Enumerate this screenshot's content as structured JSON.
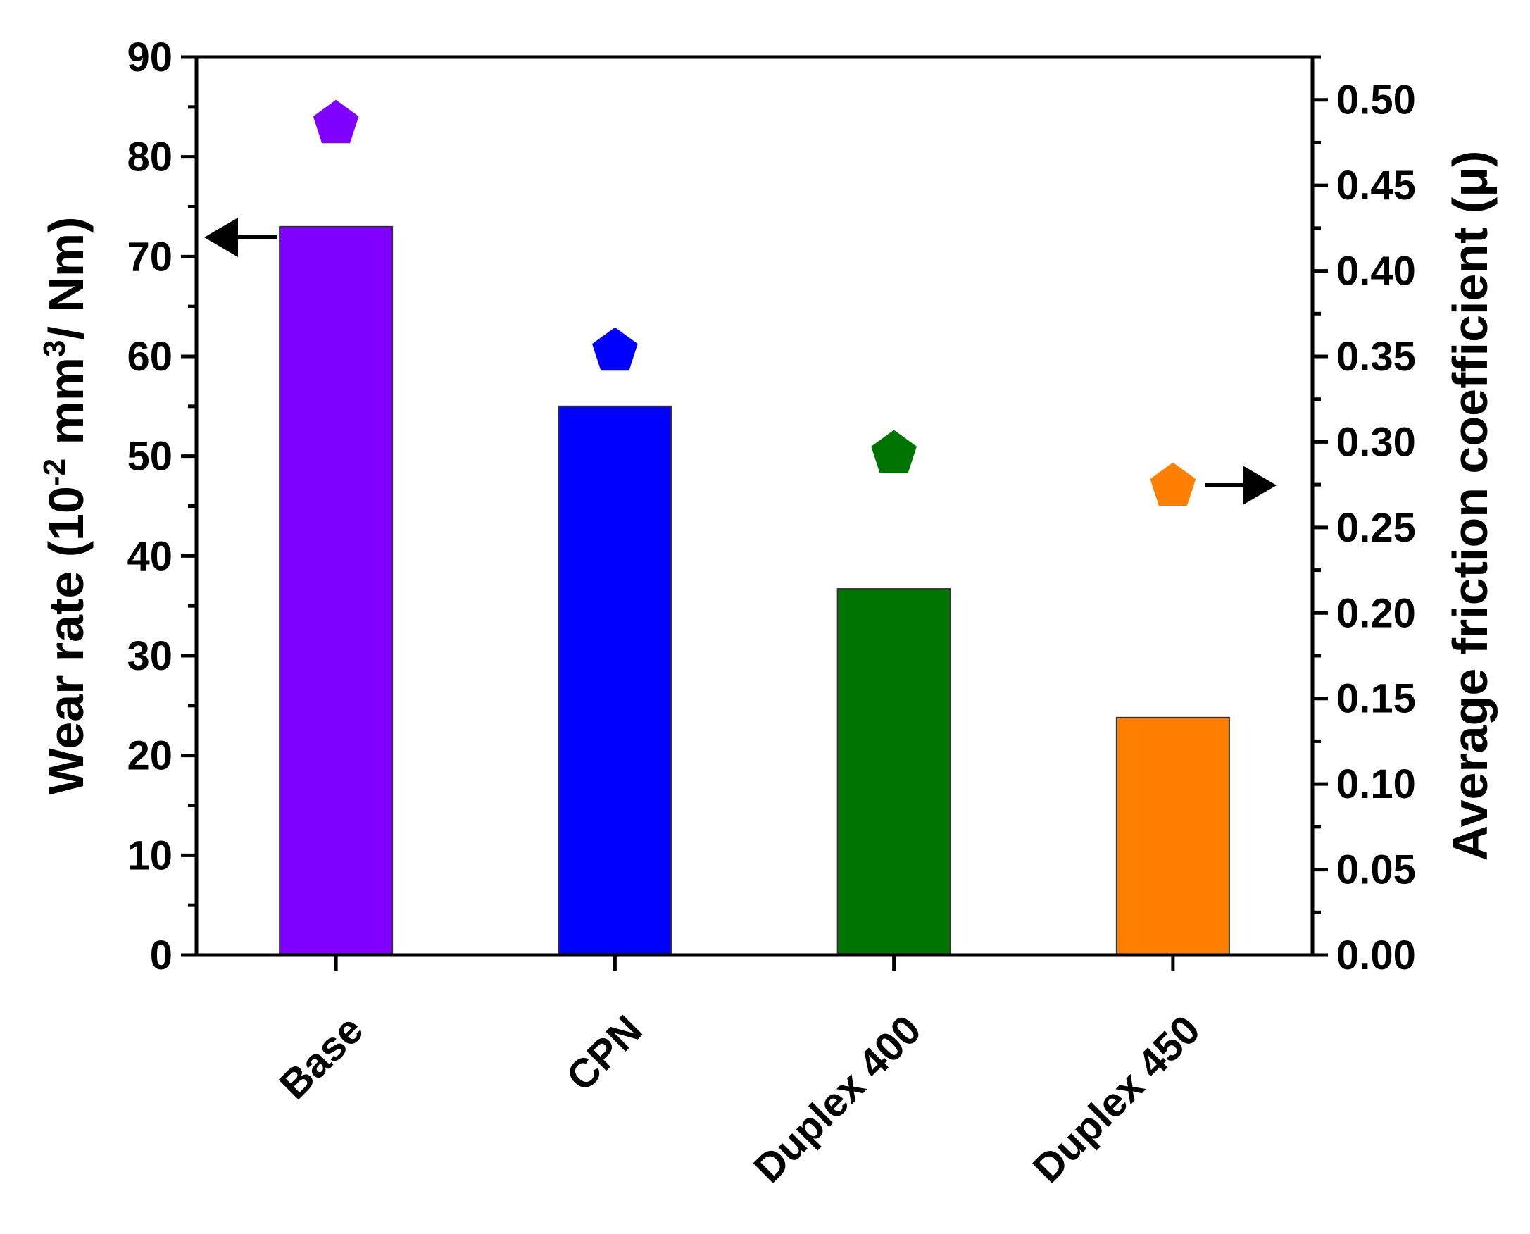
{
  "chart_data": {
    "type": "bar",
    "categories": [
      "Base",
      "CPN",
      "Duplex 400",
      "Duplex 450"
    ],
    "series": [
      {
        "axis": "left",
        "kind": "bar",
        "values": [
          73,
          55,
          36.7,
          23.8
        ],
        "colors": [
          "#7f00ff",
          "#0000ff",
          "#007400",
          "#ff8000"
        ]
      },
      {
        "axis": "right",
        "kind": "pentagon-marker",
        "values": [
          0.486,
          0.353,
          0.293,
          0.274
        ],
        "colors": [
          "#7f00ff",
          "#0000ff",
          "#007400",
          "#ff8000"
        ]
      }
    ],
    "ylabel": {
      "pre": "Wear rate (10",
      "exp1": "-2",
      "mid": " mm",
      "exp2": "3",
      "post": "/ Nm)"
    },
    "y2label": "Average friction coefficient (μ)",
    "ylim": [
      0,
      90
    ],
    "y2lim": [
      0,
      0.525
    ],
    "yticks": [
      "0",
      "10",
      "20",
      "30",
      "40",
      "50",
      "60",
      "70",
      "80",
      "90"
    ],
    "y2ticks": [
      "0.00",
      "0.05",
      "0.10",
      "0.15",
      "0.20",
      "0.25",
      "0.30",
      "0.35",
      "0.40",
      "0.45",
      "0.50"
    ],
    "axis_arrows": [
      "left (points to wear rate axis, at Base bar)",
      "right (points to friction axis, at Duplex 450 marker)"
    ]
  }
}
